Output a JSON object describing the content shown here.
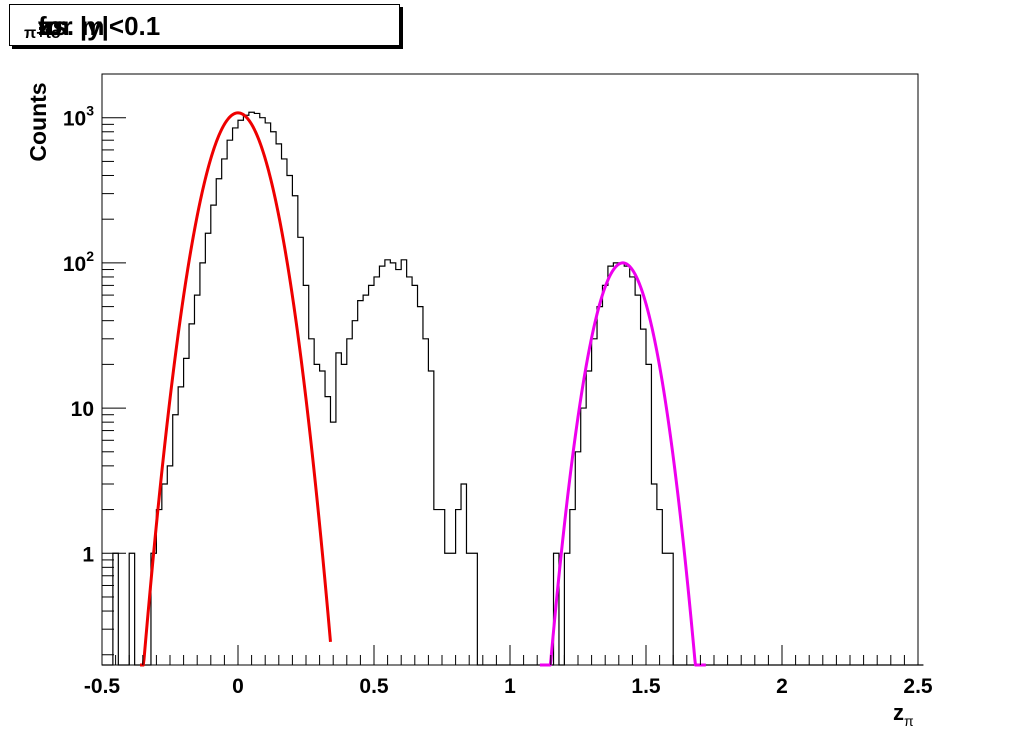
{
  "chart_data": {
    "type": "histogram",
    "title": "zπ+ vs. mt-mo for |y|<0.1",
    "title_parts": {
      "z": "z",
      "sub1": "π+",
      "vs": " vs. m",
      "sub2": "t",
      "dash": "-m",
      "sub3": "o",
      "tail": " for |y|<0.1"
    },
    "xlabel": "zπ",
    "xlabel_parts": {
      "main": "z",
      "sub": "π"
    },
    "ylabel": "Counts",
    "x_range": [
      -0.5,
      2.5
    ],
    "y_range": [
      0.17,
      2000
    ],
    "y_scale": "log",
    "x_ticks": [
      "-0.5",
      "0",
      "0.5",
      "1",
      "1.5",
      "2",
      "2.5"
    ],
    "y_ticks": [
      {
        "value": 1000,
        "base": "10",
        "exp": "3"
      },
      {
        "value": 100,
        "base": "10",
        "exp": "2"
      },
      {
        "value": 10,
        "base": "10",
        "exp": ""
      },
      {
        "value": 1,
        "base": "1",
        "exp": ""
      }
    ],
    "grid": false,
    "histogram": {
      "bin_start": -0.5,
      "bin_width": 0.02,
      "counts": [
        0,
        0,
        1,
        0,
        0,
        1,
        0,
        0,
        0,
        1,
        2,
        3,
        4,
        9,
        14,
        22,
        38,
        60,
        100,
        160,
        250,
        380,
        520,
        700,
        850,
        960,
        1040,
        1090,
        1070,
        1000,
        920,
        800,
        660,
        520,
        400,
        290,
        150,
        70,
        30,
        20,
        18,
        12,
        8,
        24,
        20,
        30,
        40,
        55,
        60,
        70,
        80,
        95,
        105,
        100,
        90,
        105,
        80,
        70,
        50,
        30,
        18,
        2,
        2,
        1,
        1,
        2,
        3,
        1,
        1,
        0,
        0,
        0,
        0,
        0,
        0,
        0,
        0,
        0,
        0,
        0,
        0,
        0,
        0,
        1,
        0,
        1,
        2,
        5,
        10,
        18,
        30,
        50,
        70,
        95,
        100,
        100,
        95,
        80,
        60,
        35,
        20,
        3,
        2,
        1,
        1,
        0,
        0,
        0,
        0,
        0,
        0,
        0,
        0,
        0,
        0,
        0,
        0,
        0,
        0,
        0,
        0,
        0,
        0,
        0,
        0,
        0,
        0,
        0,
        0,
        0,
        0,
        0,
        0,
        0,
        0,
        0,
        0,
        0,
        0,
        0,
        0,
        0,
        0,
        0,
        0,
        0,
        0,
        0,
        0,
        0,
        0
      ],
      "color": "#000000"
    },
    "fits": [
      {
        "type": "gaussian",
        "amplitude": 1080,
        "mean": 0.0,
        "sigma": 0.083,
        "x_range": [
          -0.36,
          0.34
        ],
        "color": "#ee0000"
      },
      {
        "type": "gaussian",
        "amplitude": 100,
        "mean": 1.415,
        "sigma": 0.0746,
        "x_range": [
          1.11,
          1.72
        ],
        "color": "#ee00ee"
      }
    ]
  }
}
